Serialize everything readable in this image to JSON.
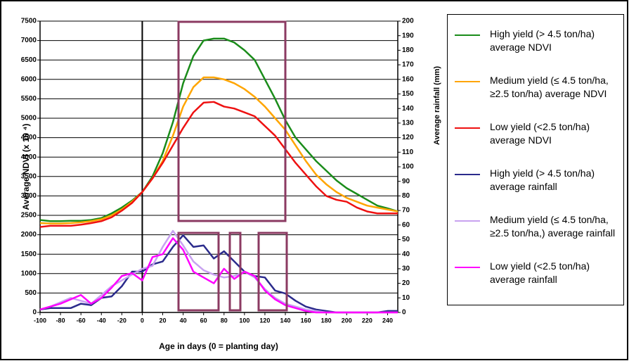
{
  "chart_data": {
    "type": "line",
    "x_label": "Age in days (0 = planting day)",
    "y_label": "Average NDVI (x 10 ⁴)",
    "y2_label": "Average rainfall (mm)",
    "xlim": [
      -100,
      250
    ],
    "xticks": [
      -100,
      -80,
      -60,
      -40,
      -20,
      0,
      20,
      40,
      60,
      80,
      100,
      120,
      140,
      160,
      180,
      200,
      220,
      240
    ],
    "ylim": [
      0,
      7500
    ],
    "yticks": [
      0,
      500,
      1000,
      1500,
      2000,
      2500,
      3000,
      3500,
      4000,
      4500,
      5000,
      5500,
      6000,
      6500,
      7000,
      7500
    ],
    "y2lim": [
      0,
      200
    ],
    "y2ticks": [
      0,
      10,
      20,
      30,
      40,
      50,
      60,
      70,
      80,
      90,
      100,
      110,
      120,
      130,
      140,
      150,
      160,
      170,
      180,
      190,
      200
    ],
    "grid": true,
    "x": [
      -100,
      -90,
      -80,
      -70,
      -60,
      -50,
      -40,
      -30,
      -20,
      -10,
      0,
      10,
      20,
      30,
      40,
      50,
      60,
      70,
      80,
      90,
      100,
      110,
      120,
      130,
      140,
      150,
      160,
      170,
      180,
      190,
      200,
      210,
      220,
      230,
      240,
      250
    ],
    "series": [
      {
        "name": "High yield (> 4.5 ton/ha) average NDVI",
        "color": "#1a8c1a",
        "values": [
          2380,
          2350,
          2350,
          2360,
          2360,
          2380,
          2430,
          2550,
          2700,
          2880,
          3100,
          3500,
          4100,
          4900,
          5900,
          6600,
          7000,
          7050,
          7050,
          6950,
          6750,
          6500,
          6000,
          5500,
          4950,
          4500,
          4200,
          3900,
          3650,
          3400,
          3200,
          3050,
          2900,
          2750,
          2680,
          2600
        ]
      },
      {
        "name": "Medium yield (≤ 4.5 ton/ha, ≥2.5 ton/ha) average NDVI",
        "color": "#ffa500",
        "values": [
          2300,
          2290,
          2290,
          2300,
          2320,
          2350,
          2400,
          2500,
          2650,
          2850,
          3100,
          3450,
          3900,
          4550,
          5300,
          5800,
          6050,
          6050,
          6000,
          5900,
          5750,
          5550,
          5300,
          5000,
          4700,
          4300,
          3900,
          3550,
          3300,
          3100,
          2950,
          2850,
          2750,
          2700,
          2650,
          2600
        ]
      },
      {
        "name": "Low yield (<2.5 ton/ha) average NDVI",
        "color": "#ee1111",
        "values": [
          2200,
          2230,
          2230,
          2230,
          2260,
          2300,
          2350,
          2450,
          2620,
          2820,
          3100,
          3450,
          3850,
          4300,
          4750,
          5150,
          5400,
          5420,
          5300,
          5250,
          5150,
          5050,
          4800,
          4550,
          4200,
          3850,
          3550,
          3250,
          3000,
          2900,
          2850,
          2700,
          2600,
          2550,
          2550,
          2550
        ]
      },
      {
        "name": "High yield (> 4.5 ton/ha) average rainfall",
        "color": "#2b2b8c",
        "axis": "y2",
        "values": [
          2,
          3,
          3,
          3,
          6,
          5,
          10,
          11,
          18,
          28,
          28,
          33,
          35,
          45,
          53,
          45,
          46,
          37,
          42,
          35,
          28,
          25,
          24,
          15,
          13,
          8,
          4,
          2,
          1,
          0,
          0,
          0,
          0,
          0,
          1,
          1
        ]
      },
      {
        "name": "Medium yield (≤ 4.5 ton/ha, ≥2.5 ton/ha,) average rainfall",
        "color": "#c8a2f0",
        "axis": "y2",
        "values": [
          2,
          4,
          7,
          10,
          8,
          6,
          12,
          18,
          22,
          26,
          30,
          32,
          45,
          56,
          46,
          35,
          29,
          26,
          24,
          25,
          28,
          24,
          16,
          10,
          6,
          4,
          2,
          1,
          0,
          0,
          0,
          0,
          0,
          0,
          0,
          0
        ]
      },
      {
        "name": "Low yield (<2.5 ton/ha) average rainfall",
        "color": "#ff00ff",
        "axis": "y2",
        "values": [
          2,
          4,
          6,
          9,
          12,
          6,
          10,
          17,
          25,
          27,
          22,
          38,
          40,
          51,
          43,
          28,
          24,
          20,
          30,
          23,
          28,
          25,
          15,
          9,
          5,
          3,
          1,
          0,
          0,
          0,
          0,
          0,
          0,
          0,
          0,
          0
        ]
      }
    ]
  }
}
